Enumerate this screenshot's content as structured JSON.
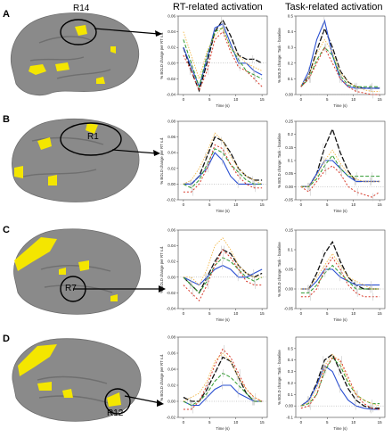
{
  "headers": {
    "rt": "RT-related activation",
    "task": "Task-related activation"
  },
  "rows": [
    {
      "label": "A",
      "region": "R14"
    },
    {
      "label": "B",
      "region": "R1"
    },
    {
      "label": "C",
      "region": "R7"
    },
    {
      "label": "D",
      "region": "R12"
    }
  ],
  "colors": {
    "black": "#111111",
    "blue": "#2a4fd1",
    "green": "#2e9a2e",
    "red": "#d83a2a",
    "orange": "#f2b84a",
    "gray": "#9a9a9a",
    "brain": "#8a8a8a",
    "activation": "#f4e600"
  },
  "chart_data": [
    {
      "type": "line",
      "row": "A",
      "column": "RT-related activation",
      "xlabel": "Time (s)",
      "ylabel": "% BOLD change per RT s.d.",
      "xlim": [
        -1,
        16
      ],
      "ylim": [
        -0.04,
        0.06
      ],
      "xticks": [
        0,
        5,
        10,
        15
      ],
      "yticks": [
        -0.04,
        -0.02,
        0.0,
        0.02,
        0.04,
        0.06
      ],
      "x": [
        0,
        1.5,
        3,
        4.5,
        6,
        7.5,
        9,
        10.5,
        12,
        13.5,
        15
      ],
      "series": [
        {
          "color": "black",
          "values": [
            0.02,
            -0.01,
            -0.035,
            0.0,
            0.04,
            0.055,
            0.035,
            0.01,
            0.005,
            0.005,
            0.0
          ]
        },
        {
          "color": "blue",
          "values": [
            0.02,
            -0.005,
            -0.03,
            0.005,
            0.045,
            0.05,
            0.025,
            0.0,
            0.0,
            -0.01,
            -0.015
          ]
        },
        {
          "color": "green",
          "values": [
            0.03,
            0.0,
            -0.03,
            0.01,
            0.04,
            0.045,
            0.02,
            0.005,
            -0.01,
            -0.015,
            -0.02
          ]
        },
        {
          "color": "red",
          "values": [
            0.01,
            -0.01,
            -0.035,
            -0.01,
            0.03,
            0.04,
            0.015,
            -0.005,
            -0.01,
            -0.02,
            -0.03
          ]
        },
        {
          "color": "orange",
          "values": [
            0.04,
            0.01,
            -0.02,
            0.015,
            0.035,
            0.045,
            0.02,
            0.01,
            0.0,
            -0.005,
            -0.01
          ]
        }
      ]
    },
    {
      "type": "line",
      "row": "A",
      "column": "Task-related activation",
      "xlabel": "Time (s)",
      "ylabel": "% BOLD change: Task - baseline",
      "xlim": [
        -1,
        16
      ],
      "ylim": [
        0.0,
        0.5
      ],
      "xticks": [
        0,
        5,
        10,
        15
      ],
      "yticks": [
        0.0,
        0.1,
        0.2,
        0.3,
        0.4,
        0.5
      ],
      "x": [
        0,
        1.5,
        3,
        4.5,
        6,
        7.5,
        9,
        10.5,
        12,
        13.5,
        15
      ],
      "series": [
        {
          "color": "black",
          "values": [
            0.05,
            0.12,
            0.28,
            0.42,
            0.3,
            0.15,
            0.08,
            0.05,
            0.04,
            0.04,
            0.04
          ]
        },
        {
          "color": "blue",
          "values": [
            0.05,
            0.15,
            0.35,
            0.47,
            0.25,
            0.1,
            0.05,
            0.04,
            0.04,
            0.04,
            0.04
          ]
        },
        {
          "color": "green",
          "values": [
            0.05,
            0.1,
            0.22,
            0.3,
            0.25,
            0.12,
            0.06,
            0.05,
            0.05,
            0.05,
            0.05
          ]
        },
        {
          "color": "red",
          "values": [
            0.05,
            0.1,
            0.2,
            0.3,
            0.2,
            0.1,
            0.05,
            0.02,
            0.01,
            0.0,
            0.0
          ]
        },
        {
          "color": "orange",
          "values": [
            0.06,
            0.12,
            0.26,
            0.35,
            0.27,
            0.14,
            0.08,
            0.05,
            0.03,
            0.02,
            0.02
          ]
        }
      ]
    },
    {
      "type": "line",
      "row": "B",
      "column": "RT-related activation",
      "xlabel": "Time (s)",
      "ylabel": "% BOLD change per RT s.d.",
      "xlim": [
        -1,
        16
      ],
      "ylim": [
        -0.02,
        0.08
      ],
      "xticks": [
        0,
        5,
        10,
        15
      ],
      "yticks": [
        -0.02,
        0.0,
        0.02,
        0.04,
        0.06,
        0.08
      ],
      "x": [
        0,
        1.5,
        3,
        4.5,
        6,
        7.5,
        9,
        10.5,
        12,
        13.5,
        15
      ],
      "series": [
        {
          "color": "black",
          "values": [
            0.0,
            0.0,
            0.01,
            0.035,
            0.06,
            0.055,
            0.04,
            0.02,
            0.01,
            0.005,
            0.005
          ]
        },
        {
          "color": "blue",
          "values": [
            0.0,
            0.0,
            0.01,
            0.02,
            0.04,
            0.03,
            0.01,
            0.0,
            0.0,
            0.0,
            0.0
          ]
        },
        {
          "color": "green",
          "values": [
            0.0,
            -0.005,
            0.005,
            0.025,
            0.045,
            0.04,
            0.025,
            0.015,
            0.005,
            0.0,
            0.0
          ]
        },
        {
          "color": "red",
          "values": [
            -0.01,
            -0.01,
            0.0,
            0.02,
            0.05,
            0.045,
            0.025,
            0.01,
            0.0,
            -0.005,
            -0.005
          ]
        },
        {
          "color": "orange",
          "values": [
            0.0,
            0.005,
            0.02,
            0.04,
            0.065,
            0.055,
            0.035,
            0.02,
            0.01,
            0.005,
            0.0
          ]
        }
      ]
    },
    {
      "type": "line",
      "row": "B",
      "column": "Task-related activation",
      "xlabel": "Time (s)",
      "ylabel": "% BOLD change: Task - baseline",
      "xlim": [
        -1,
        16
      ],
      "ylim": [
        -0.05,
        0.25
      ],
      "xticks": [
        0,
        5,
        10,
        15
      ],
      "yticks": [
        -0.05,
        0.0,
        0.05,
        0.1,
        0.15,
        0.2,
        0.25
      ],
      "x": [
        0,
        1.5,
        3,
        4.5,
        6,
        7.5,
        9,
        10.5,
        12,
        13.5,
        15
      ],
      "series": [
        {
          "color": "black",
          "values": [
            0.0,
            0.0,
            0.05,
            0.15,
            0.22,
            0.13,
            0.06,
            0.02,
            0.02,
            0.02,
            0.02
          ]
        },
        {
          "color": "blue",
          "values": [
            0.0,
            0.0,
            0.05,
            0.1,
            0.1,
            0.07,
            0.04,
            0.02,
            0.02,
            0.02,
            0.02
          ]
        },
        {
          "color": "green",
          "values": [
            0.0,
            0.0,
            0.03,
            0.08,
            0.12,
            0.07,
            0.04,
            0.04,
            0.04,
            0.04,
            0.04
          ]
        },
        {
          "color": "red",
          "values": [
            0.0,
            -0.02,
            0.02,
            0.06,
            0.08,
            0.05,
            0.0,
            -0.02,
            -0.03,
            -0.04,
            -0.02
          ]
        },
        {
          "color": "orange",
          "values": [
            0.0,
            0.0,
            0.04,
            0.1,
            0.14,
            0.09,
            0.05,
            0.03,
            0.02,
            0.02,
            0.02
          ]
        }
      ]
    },
    {
      "type": "line",
      "row": "C",
      "column": "RT-related activation",
      "xlabel": "Time (s)",
      "ylabel": "% BOLD change per RT s.d.",
      "xlim": [
        -1,
        16
      ],
      "ylim": [
        -0.04,
        0.06
      ],
      "xticks": [
        0,
        5,
        10,
        15
      ],
      "yticks": [
        -0.04,
        -0.02,
        0.0,
        0.02,
        0.04,
        0.06
      ],
      "x": [
        0,
        1.5,
        3,
        4.5,
        6,
        7.5,
        9,
        10.5,
        12,
        13.5,
        15
      ],
      "series": [
        {
          "color": "black",
          "values": [
            0.0,
            -0.01,
            -0.02,
            0.0,
            0.02,
            0.035,
            0.03,
            0.015,
            0.005,
            0.0,
            0.005
          ]
        },
        {
          "color": "blue",
          "values": [
            0.0,
            -0.005,
            -0.01,
            0.0,
            0.01,
            0.015,
            0.01,
            0.0,
            0.0,
            0.005,
            0.01
          ]
        },
        {
          "color": "green",
          "values": [
            0.0,
            -0.01,
            -0.02,
            -0.005,
            0.015,
            0.025,
            0.02,
            0.01,
            0.0,
            -0.005,
            0.0
          ]
        },
        {
          "color": "red",
          "values": [
            -0.01,
            -0.02,
            -0.03,
            -0.01,
            0.015,
            0.035,
            0.025,
            0.01,
            -0.005,
            -0.01,
            -0.01
          ]
        },
        {
          "color": "orange",
          "values": [
            0.0,
            0.0,
            -0.01,
            0.01,
            0.04,
            0.05,
            0.035,
            0.015,
            0.005,
            0.0,
            0.0
          ]
        }
      ]
    },
    {
      "type": "line",
      "row": "C",
      "column": "Task-related activation",
      "xlabel": "Time (s)",
      "ylabel": "% BOLD change: Task - baseline",
      "xlim": [
        -1,
        16
      ],
      "ylim": [
        -0.05,
        0.15
      ],
      "xticks": [
        0,
        5,
        10,
        15
      ],
      "yticks": [
        -0.05,
        0.0,
        0.05,
        0.1,
        0.15
      ],
      "x": [
        0,
        1.5,
        3,
        4.5,
        6,
        7.5,
        9,
        10.5,
        12,
        13.5,
        15
      ],
      "series": [
        {
          "color": "black",
          "values": [
            0.0,
            0.0,
            0.04,
            0.09,
            0.12,
            0.07,
            0.03,
            0.01,
            0.0,
            0.0,
            0.0
          ]
        },
        {
          "color": "blue",
          "values": [
            0.0,
            0.0,
            0.02,
            0.05,
            0.05,
            0.03,
            0.02,
            0.01,
            0.01,
            0.01,
            0.01
          ]
        },
        {
          "color": "green",
          "values": [
            -0.01,
            -0.01,
            0.01,
            0.04,
            0.06,
            0.04,
            0.02,
            0.0,
            0.0,
            0.0,
            0.0
          ]
        },
        {
          "color": "red",
          "values": [
            -0.02,
            -0.02,
            0.0,
            0.05,
            0.08,
            0.05,
            0.01,
            -0.01,
            -0.02,
            -0.02,
            -0.02
          ]
        },
        {
          "color": "orange",
          "values": [
            0.0,
            0.0,
            0.03,
            0.06,
            0.09,
            0.06,
            0.03,
            0.02,
            0.01,
            0.0,
            0.0
          ]
        }
      ]
    },
    {
      "type": "line",
      "row": "D",
      "column": "RT-related activation",
      "xlabel": "Time (s)",
      "ylabel": "% BOLD change per RT s.d.",
      "xlim": [
        -1,
        16
      ],
      "ylim": [
        -0.02,
        0.08
      ],
      "xticks": [
        0,
        5,
        10,
        15
      ],
      "yticks": [
        -0.02,
        0.0,
        0.02,
        0.04,
        0.06,
        0.08
      ],
      "x": [
        0,
        1.5,
        3,
        4.5,
        6,
        7.5,
        9,
        10.5,
        12,
        13.5,
        15
      ],
      "series": [
        {
          "color": "black",
          "values": [
            0.005,
            0.0,
            0.0,
            0.015,
            0.035,
            0.055,
            0.05,
            0.03,
            0.01,
            0.0,
            0.0
          ]
        },
        {
          "color": "blue",
          "values": [
            0.0,
            -0.005,
            -0.005,
            0.005,
            0.015,
            0.02,
            0.02,
            0.01,
            0.005,
            0.0,
            0.0
          ]
        },
        {
          "color": "green",
          "values": [
            0.0,
            -0.005,
            0.0,
            0.01,
            0.025,
            0.035,
            0.03,
            0.02,
            0.01,
            0.0,
            0.0
          ]
        },
        {
          "color": "red",
          "values": [
            -0.01,
            -0.01,
            0.0,
            0.02,
            0.045,
            0.065,
            0.055,
            0.035,
            0.015,
            0.005,
            0.0
          ]
        },
        {
          "color": "orange",
          "values": [
            0.0,
            0.005,
            0.01,
            0.025,
            0.05,
            0.06,
            0.05,
            0.03,
            0.015,
            0.005,
            0.0
          ]
        }
      ]
    },
    {
      "type": "line",
      "row": "D",
      "column": "Task-related activation",
      "xlabel": "Time (s)",
      "ylabel": "% BOLD change: Task - baseline",
      "xlim": [
        -1,
        16
      ],
      "ylim": [
        -0.1,
        0.6
      ],
      "xticks": [
        0,
        5,
        10,
        15
      ],
      "yticks": [
        -0.1,
        0.0,
        0.1,
        0.2,
        0.3,
        0.4,
        0.5
      ],
      "x": [
        0,
        1.5,
        3,
        4.5,
        6,
        7.5,
        9,
        10.5,
        12,
        13.5,
        15
      ],
      "series": [
        {
          "color": "black",
          "values": [
            0.0,
            0.05,
            0.2,
            0.4,
            0.45,
            0.3,
            0.15,
            0.05,
            0.0,
            -0.02,
            -0.02
          ]
        },
        {
          "color": "blue",
          "values": [
            0.0,
            0.05,
            0.18,
            0.35,
            0.3,
            0.15,
            0.05,
            0.0,
            -0.02,
            -0.03,
            -0.03
          ]
        },
        {
          "color": "green",
          "values": [
            0.0,
            0.02,
            0.1,
            0.3,
            0.42,
            0.35,
            0.2,
            0.1,
            0.05,
            0.02,
            0.02
          ]
        },
        {
          "color": "red",
          "values": [
            -0.02,
            0.0,
            0.1,
            0.32,
            0.42,
            0.4,
            0.25,
            0.1,
            0.02,
            -0.02,
            -0.03
          ]
        },
        {
          "color": "orange",
          "values": [
            0.0,
            0.03,
            0.15,
            0.35,
            0.45,
            0.38,
            0.22,
            0.1,
            0.05,
            0.02,
            0.0
          ]
        }
      ]
    }
  ]
}
